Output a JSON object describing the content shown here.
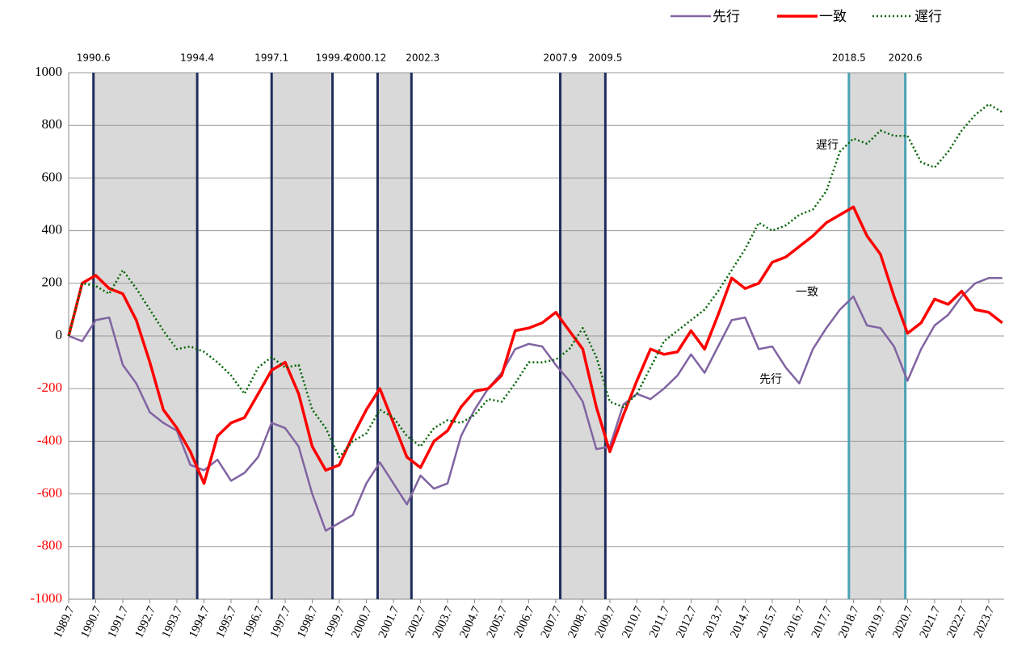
{
  "chart_data": {
    "type": "line",
    "x": [
      1989.5,
      1990,
      1990.5,
      1991,
      1991.5,
      1992,
      1992.5,
      1993,
      1993.5,
      1994,
      1994.5,
      1995,
      1995.5,
      1996,
      1996.5,
      1997,
      1997.5,
      1998,
      1998.5,
      1999,
      1999.5,
      2000,
      2000.5,
      2001,
      2001.5,
      2002,
      2002.5,
      2003,
      2003.5,
      2004,
      2004.5,
      2005,
      2005.5,
      2006,
      2006.5,
      2007,
      2007.5,
      2008,
      2008.5,
      2009,
      2009.5,
      2010,
      2010.5,
      2011,
      2011.5,
      2012,
      2012.5,
      2013,
      2013.5,
      2014,
      2014.5,
      2015,
      2015.5,
      2016,
      2016.5,
      2017,
      2017.5,
      2018,
      2018.5,
      2019,
      2019.5,
      2020,
      2020.5,
      2021,
      2021.5,
      2022,
      2022.5,
      2023,
      2023.5,
      2024
    ],
    "series": [
      {
        "name": "先行",
        "color": "#8064a2",
        "line_style": "solid",
        "line_width": 2.5,
        "values": [
          0,
          -20,
          60,
          70,
          -110,
          -180,
          -290,
          -330,
          -360,
          -490,
          -510,
          -470,
          -550,
          -520,
          -460,
          -330,
          -350,
          -420,
          -600,
          -740,
          -710,
          -680,
          -560,
          -480,
          -560,
          -640,
          -530,
          -580,
          -560,
          -380,
          -280,
          -200,
          -140,
          -50,
          -30,
          -40,
          -110,
          -170,
          -250,
          -430,
          -420,
          -260,
          -220,
          -240,
          -200,
          -150,
          -70,
          -140,
          -40,
          60,
          70,
          -50,
          -40,
          -120,
          -180,
          -50,
          30,
          100,
          150,
          40,
          30,
          -40,
          -170,
          -50,
          40,
          80,
          150,
          200,
          220,
          220
        ]
      },
      {
        "name": "一致",
        "color": "#ff0000",
        "line_style": "solid",
        "line_width": 3.5,
        "values": [
          0,
          200,
          230,
          180,
          160,
          60,
          -100,
          -280,
          -350,
          -440,
          -560,
          -380,
          -330,
          -310,
          -220,
          -130,
          -100,
          -220,
          -420,
          -510,
          -490,
          -380,
          -280,
          -200,
          -330,
          -460,
          -500,
          -400,
          -360,
          -270,
          -210,
          -200,
          -150,
          20,
          30,
          50,
          90,
          20,
          -50,
          -270,
          -440,
          -300,
          -170,
          -50,
          -70,
          -60,
          20,
          -50,
          80,
          220,
          180,
          200,
          280,
          300,
          340,
          380,
          430,
          460,
          490,
          380,
          310,
          150,
          10,
          50,
          140,
          120,
          170,
          100,
          90,
          50
        ]
      },
      {
        "name": "遅行",
        "color": "#006400",
        "line_style": "dotted",
        "line_width": 2.5,
        "values": [
          0,
          200,
          190,
          160,
          250,
          180,
          100,
          20,
          -50,
          -40,
          -60,
          -100,
          -150,
          -220,
          -120,
          -80,
          -120,
          -110,
          -280,
          -350,
          -460,
          -400,
          -370,
          -280,
          -310,
          -380,
          -420,
          -350,
          -320,
          -330,
          -300,
          -240,
          -250,
          -180,
          -100,
          -100,
          -90,
          -50,
          30,
          -80,
          -250,
          -270,
          -220,
          -120,
          -20,
          20,
          60,
          100,
          170,
          250,
          330,
          430,
          400,
          420,
          460,
          480,
          550,
          700,
          750,
          730,
          780,
          760,
          760,
          660,
          640,
          700,
          780,
          840,
          880,
          850
        ]
      }
    ],
    "recessions": [
      {
        "start": {
          "value": 1990.417,
          "label": "1990.6"
        },
        "end": {
          "value": 1994.25,
          "label": "1994.4"
        },
        "color": "#1f2d5c"
      },
      {
        "start": {
          "value": 1997.0,
          "label": "1997.1"
        },
        "end": {
          "value": 1999.25,
          "label": "1999.4"
        },
        "color": "#1f2d5c"
      },
      {
        "start": {
          "value": 2000.917,
          "label": "2000.12"
        },
        "end": {
          "value": 2002.167,
          "label": "2002.3"
        },
        "color": "#1f2d5c"
      },
      {
        "start": {
          "value": 2007.667,
          "label": "2007.9"
        },
        "end": {
          "value": 2009.333,
          "label": "2009.5"
        },
        "color": "#1f2d5c"
      },
      {
        "start": {
          "value": 2018.333,
          "label": "2018.5"
        },
        "end": {
          "value": 2020.417,
          "label": "2020.6"
        },
        "color": "#4aa3b5"
      }
    ],
    "xlim": [
      1989.5,
      2024.07
    ],
    "xticks": [
      {
        "value": 1989.5,
        "label": "1989.7"
      },
      {
        "value": 1990.5,
        "label": "1990.7"
      },
      {
        "value": 1991.5,
        "label": "1991.7"
      },
      {
        "value": 1992.5,
        "label": "1992.7"
      },
      {
        "value": 1993.5,
        "label": "1993.7"
      },
      {
        "value": 1994.5,
        "label": "1994.7"
      },
      {
        "value": 1995.5,
        "label": "1995.7"
      },
      {
        "value": 1996.5,
        "label": "1996.7"
      },
      {
        "value": 1997.5,
        "label": "1997.7"
      },
      {
        "value": 1998.5,
        "label": "1998.7"
      },
      {
        "value": 1999.5,
        "label": "1999.7"
      },
      {
        "value": 2000.5,
        "label": "2000.7"
      },
      {
        "value": 2001.5,
        "label": "2001.7"
      },
      {
        "value": 2002.5,
        "label": "2002.7"
      },
      {
        "value": 2003.5,
        "label": "2003.7"
      },
      {
        "value": 2004.5,
        "label": "2004.7"
      },
      {
        "value": 2005.5,
        "label": "2005.7"
      },
      {
        "value": 2006.5,
        "label": "2006.7"
      },
      {
        "value": 2007.5,
        "label": "2007.7"
      },
      {
        "value": 2008.5,
        "label": "2008.7"
      },
      {
        "value": 2009.5,
        "label": "2009.7"
      },
      {
        "value": 2010.5,
        "label": "2010.7"
      },
      {
        "value": 2011.5,
        "label": "2011.7"
      },
      {
        "value": 2012.5,
        "label": "2012.7"
      },
      {
        "value": 2013.5,
        "label": "2013.7"
      },
      {
        "value": 2014.5,
        "label": "2014.7"
      },
      {
        "value": 2015.5,
        "label": "2015.7"
      },
      {
        "value": 2016.5,
        "label": "2016.7"
      },
      {
        "value": 2017.5,
        "label": "2017.7"
      },
      {
        "value": 2018.5,
        "label": "2018.7"
      },
      {
        "value": 2019.5,
        "label": "2019.7"
      },
      {
        "value": 2020.5,
        "label": "2020.7"
      },
      {
        "value": 2021.5,
        "label": "2021.7"
      },
      {
        "value": 2022.5,
        "label": "2022.7"
      },
      {
        "value": 2023.5,
        "label": "2023.7"
      }
    ],
    "ylim": [
      -1000,
      1000
    ],
    "yticks": [
      -1000,
      -800,
      -600,
      -400,
      -200,
      0,
      200,
      400,
      600,
      800,
      1000
    ],
    "negative_tick_color": "#ff0000",
    "grid": true
  }
}
